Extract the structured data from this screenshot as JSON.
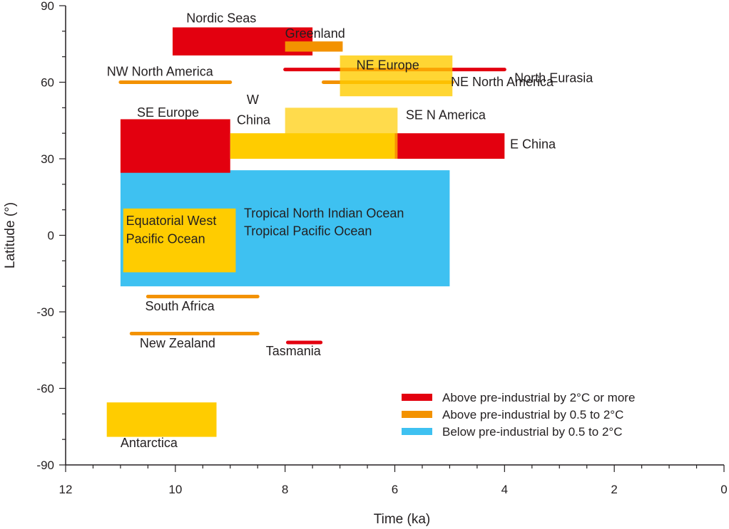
{
  "chart_data": {
    "type": "bar",
    "xlabel": "Time (ka)",
    "ylabel": "Latitude (°)",
    "xlim": [
      12,
      0
    ],
    "ylim": [
      -90,
      90
    ],
    "x_ticks": [
      "12",
      "10",
      "8",
      "6",
      "4",
      "2",
      "0"
    ],
    "y_ticks": [
      "-90",
      "-60",
      "-30",
      "0",
      "30",
      "60",
      "90"
    ],
    "colors": {
      "above_2": "#e3000f",
      "above_0_5_to_2": "#f39200",
      "below_0_5_to_2": "#3ec1f1",
      "box_yellow": "#ffcc00"
    },
    "legend": {
      "position": "bottom-right",
      "items": [
        {
          "label": "Above pre-industrial by 2°C or more",
          "color": "#e3000f"
        },
        {
          "label": "Above pre-industrial by 0.5 to 2°C",
          "color": "#f39200"
        },
        {
          "label": "Below pre-industrial by 0.5 to 2°C",
          "color": "#3ec1f1"
        }
      ]
    },
    "regions": [
      {
        "id": "tropical-ocean",
        "kind": "box",
        "color": "#3ec1f1",
        "x": [
          11,
          5
        ],
        "lat": [
          -20,
          25.5
        ]
      },
      {
        "id": "se-europe",
        "kind": "box",
        "color": "#e3000f",
        "x": [
          11,
          9
        ],
        "lat": [
          24.5,
          45.5
        ]
      },
      {
        "id": "w-china",
        "kind": "box",
        "color": "#ffcc00",
        "x": [
          9,
          6
        ],
        "lat": [
          30,
          40
        ]
      },
      {
        "id": "e-china",
        "kind": "box",
        "color": "#e3000f",
        "x": [
          6,
          4
        ],
        "lat": [
          30,
          40
        ]
      },
      {
        "id": "se-n-america",
        "kind": "box",
        "color": "#ffcc00",
        "opacity": 0.7,
        "x": [
          8,
          5.95
        ],
        "lat": [
          30,
          50
        ]
      },
      {
        "id": "nordic-seas",
        "kind": "box",
        "color": "#e3000f",
        "x": [
          10.05,
          7.5
        ],
        "lat": [
          70.5,
          81.5
        ]
      },
      {
        "id": "greenland",
        "kind": "box",
        "color": "#f39200",
        "x": [
          8,
          6.95
        ],
        "lat": [
          72,
          76
        ]
      },
      {
        "id": "equatorial-west-pacific",
        "kind": "box",
        "color": "#ffcc00",
        "x": [
          10.95,
          8.9
        ],
        "lat": [
          -14.5,
          10.5
        ]
      },
      {
        "id": "antarctica",
        "kind": "box",
        "color": "#ffcc00",
        "x": [
          11.25,
          9.25
        ],
        "lat": [
          -79,
          -65.5
        ]
      },
      {
        "id": "north-eurasia",
        "kind": "line",
        "color": "#e3000f",
        "x": [
          8,
          4
        ],
        "lat": 65
      },
      {
        "id": "nw-north-america",
        "kind": "line",
        "color": "#f39200",
        "x": [
          11,
          9
        ],
        "lat": 60
      },
      {
        "id": "ne-north-america",
        "kind": "line",
        "color": "#f39200",
        "x": [
          7.3,
          4.95
        ],
        "lat": 60
      },
      {
        "id": "ne-europe",
        "kind": "box",
        "color": "#ffcc00",
        "opacity": 0.8,
        "x": [
          7,
          4.95
        ],
        "lat": [
          54.5,
          70.5
        ]
      },
      {
        "id": "south-africa",
        "kind": "line",
        "color": "#f39200",
        "x": [
          10.5,
          8.5
        ],
        "lat": -24
      },
      {
        "id": "new-zealand",
        "kind": "line",
        "color": "#f39200",
        "x": [
          10.8,
          8.5
        ],
        "lat": -38.5
      },
      {
        "id": "tasmania",
        "kind": "line",
        "color": "#e3000f",
        "x": [
          7.95,
          7.35
        ],
        "lat": -42
      }
    ],
    "labels": [
      {
        "text": "Nordic Seas",
        "x": 9.8,
        "lat": 83.5,
        "anchor": "start"
      },
      {
        "text": "Greenland",
        "x": 8,
        "lat": 77.5,
        "anchor": "start"
      },
      {
        "text": "NE Europe",
        "x": 6.7,
        "lat": 65,
        "anchor": "start"
      },
      {
        "text": "North Eurasia",
        "x": 3.82,
        "lat": 60,
        "anchor": "start"
      },
      {
        "text": "NW North America",
        "x": 11.25,
        "lat": 62.5,
        "anchor": "start"
      },
      {
        "text": "NE North America",
        "x": 4.98,
        "lat": 58.5,
        "anchor": "start"
      },
      {
        "text": "W",
        "x": 8.7,
        "lat": 51.5,
        "anchor": "start"
      },
      {
        "text": "China",
        "x": 8.88,
        "lat": 43.5,
        "anchor": "start"
      },
      {
        "text": "SE Europe",
        "x": 10.7,
        "lat": 46.5,
        "anchor": "start"
      },
      {
        "text": "SE N America",
        "x": 5.8,
        "lat": 45.5,
        "anchor": "start"
      },
      {
        "text": "E China",
        "x": 3.9,
        "lat": 34,
        "anchor": "start"
      },
      {
        "text": "Equatorial West",
        "x": 10.9,
        "lat": 4,
        "anchor": "start"
      },
      {
        "text": "Pacific Ocean",
        "x": 10.9,
        "lat": -3,
        "anchor": "start"
      },
      {
        "text": "Tropical North Indian Ocean",
        "x": 8.75,
        "lat": 7,
        "anchor": "start"
      },
      {
        "text": "Tropical Pacific Ocean",
        "x": 8.75,
        "lat": 0,
        "anchor": "start"
      },
      {
        "text": "South Africa",
        "x": 10.55,
        "lat": -29.5,
        "anchor": "start"
      },
      {
        "text": "New Zealand",
        "x": 10.65,
        "lat": -44,
        "anchor": "start"
      },
      {
        "text": "Tasmania",
        "x": 8.35,
        "lat": -47,
        "anchor": "start"
      },
      {
        "text": "Antarctica",
        "x": 11,
        "lat": -83,
        "anchor": "start"
      }
    ]
  }
}
